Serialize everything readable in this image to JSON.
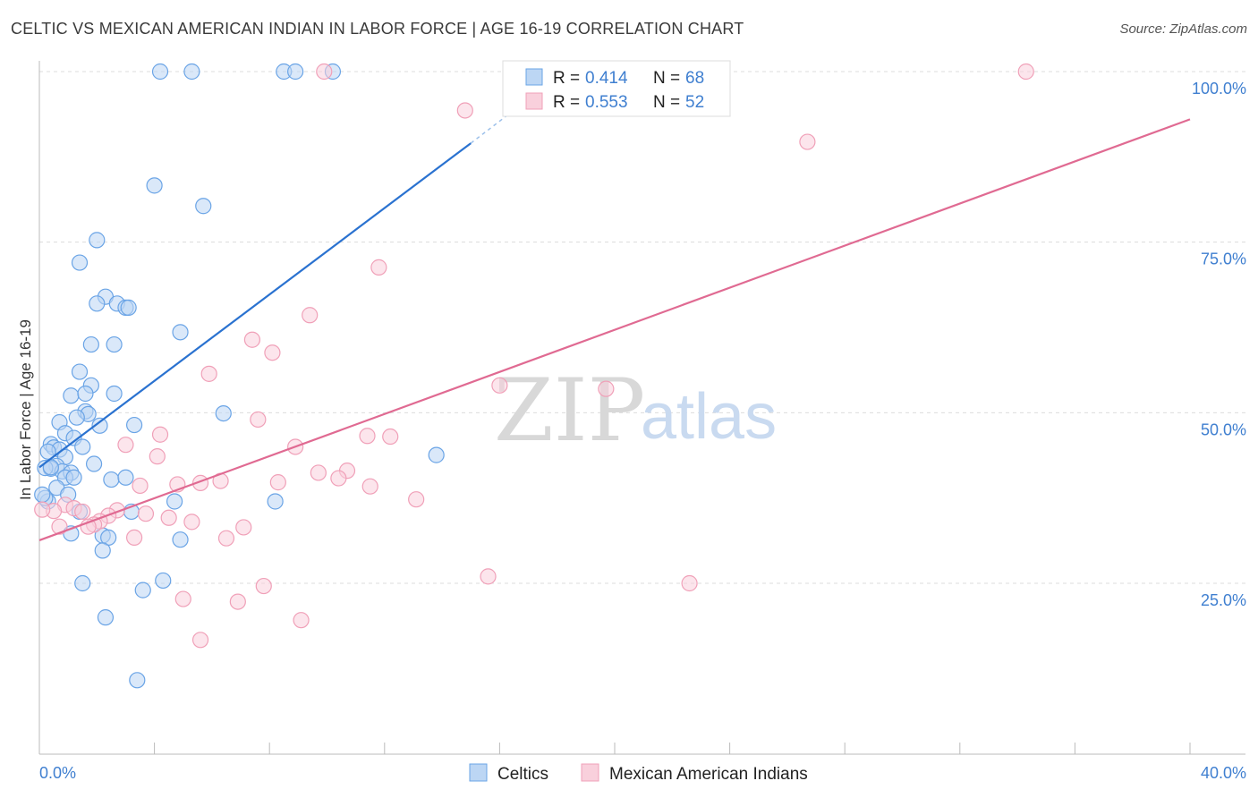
{
  "title": "CELTIC VS MEXICAN AMERICAN INDIAN IN LABOR FORCE | AGE 16-19 CORRELATION CHART",
  "source": "Source: ZipAtlas.com",
  "watermark": {
    "zip": "ZIP",
    "atlas": "atlas"
  },
  "legend": {
    "r_label": "R =",
    "n_label": "N =",
    "rows": [
      {
        "r": "0.414",
        "n": "68"
      },
      {
        "r": "0.553",
        "n": "52"
      }
    ]
  },
  "chart_data": {
    "type": "scatter",
    "title": "CELTIC VS MEXICAN AMERICAN INDIAN IN LABOR FORCE | AGE 16-19 CORRELATION CHART",
    "xlabel": "",
    "ylabel": "In Labor Force | Age 16-19",
    "xlim": [
      0,
      40
    ],
    "ylim": [
      2,
      102
    ],
    "x_tick_labels": [
      {
        "value": 0,
        "label": "0.0%"
      },
      {
        "value": 40,
        "label": "40.0%"
      }
    ],
    "y_tick_labels": [
      {
        "value": 25,
        "label": "25.0%"
      },
      {
        "value": 50,
        "label": "50.0%"
      },
      {
        "value": 75,
        "label": "75.0%"
      },
      {
        "value": 100,
        "label": "100.0%"
      }
    ],
    "grid": true,
    "legend_position": "top-center",
    "series": [
      {
        "name": "Celtics",
        "color": "#6aa4e6",
        "fill": "#bcd6f4",
        "line_color": "#2a72d0",
        "trend": {
          "x0": 0.0,
          "y0": 42.0,
          "x1": 15.0,
          "y1": 89.5,
          "dash_to_x": 16.7,
          "dash_to_y": 95.0
        },
        "points": [
          [
            4.2,
            100
          ],
          [
            5.3,
            100
          ],
          [
            8.5,
            100
          ],
          [
            8.9,
            100
          ],
          [
            10.2,
            100
          ],
          [
            4.0,
            83.3
          ],
          [
            5.7,
            80.3
          ],
          [
            2.0,
            75.3
          ],
          [
            1.4,
            72.0
          ],
          [
            2.3,
            67.0
          ],
          [
            2.0,
            66.0
          ],
          [
            2.7,
            66.0
          ],
          [
            3.0,
            65.4
          ],
          [
            3.1,
            65.4
          ],
          [
            1.8,
            60.0
          ],
          [
            2.6,
            60.0
          ],
          [
            4.9,
            61.8
          ],
          [
            1.4,
            56.0
          ],
          [
            1.8,
            54.0
          ],
          [
            1.1,
            52.5
          ],
          [
            1.6,
            52.8
          ],
          [
            2.6,
            52.8
          ],
          [
            1.6,
            50.2
          ],
          [
            1.7,
            49.8
          ],
          [
            1.3,
            49.3
          ],
          [
            6.4,
            49.9
          ],
          [
            2.1,
            48.1
          ],
          [
            0.7,
            48.6
          ],
          [
            3.3,
            48.2
          ],
          [
            0.9,
            47.0
          ],
          [
            1.2,
            46.3
          ],
          [
            0.4,
            45.4
          ],
          [
            0.5,
            44.9
          ],
          [
            0.7,
            44.6
          ],
          [
            0.3,
            44.3
          ],
          [
            1.5,
            45.0
          ],
          [
            0.9,
            43.5
          ],
          [
            0.6,
            42.2
          ],
          [
            0.4,
            41.8
          ],
          [
            0.2,
            41.9
          ],
          [
            0.8,
            41.4
          ],
          [
            1.1,
            41.2
          ],
          [
            1.9,
            42.5
          ],
          [
            0.9,
            40.5
          ],
          [
            1.2,
            40.5
          ],
          [
            2.5,
            40.2
          ],
          [
            3.0,
            40.5
          ],
          [
            0.6,
            39.0
          ],
          [
            1.0,
            38.0
          ],
          [
            0.3,
            37.0
          ],
          [
            0.2,
            37.5
          ],
          [
            1.4,
            35.5
          ],
          [
            3.2,
            35.5
          ],
          [
            4.7,
            37.0
          ],
          [
            8.2,
            37.0
          ],
          [
            1.1,
            32.3
          ],
          [
            2.2,
            32.0
          ],
          [
            2.4,
            31.7
          ],
          [
            4.9,
            31.4
          ],
          [
            2.2,
            29.8
          ],
          [
            1.5,
            25.0
          ],
          [
            3.6,
            24.0
          ],
          [
            4.3,
            25.4
          ],
          [
            2.3,
            20.0
          ],
          [
            3.4,
            10.8
          ],
          [
            13.8,
            43.8
          ],
          [
            0.1,
            38.0
          ],
          [
            0.4,
            42.0
          ]
        ]
      },
      {
        "name": "Mexican American Indians",
        "color": "#f0a0b8",
        "fill": "#f9d0dc",
        "line_color": "#e06a92",
        "trend": {
          "x0": 0.0,
          "y0": 31.3,
          "x1": 40.0,
          "y1": 93.0
        },
        "points": [
          [
            9.9,
            100
          ],
          [
            34.3,
            100
          ],
          [
            14.8,
            94.3
          ],
          [
            26.7,
            89.7
          ],
          [
            11.8,
            71.3
          ],
          [
            9.4,
            64.3
          ],
          [
            7.4,
            60.7
          ],
          [
            8.1,
            58.8
          ],
          [
            5.9,
            55.7
          ],
          [
            16.0,
            54.0
          ],
          [
            19.7,
            53.5
          ],
          [
            7.6,
            49.0
          ],
          [
            4.2,
            46.8
          ],
          [
            11.4,
            46.6
          ],
          [
            12.2,
            46.5
          ],
          [
            3.0,
            45.3
          ],
          [
            8.9,
            45.0
          ],
          [
            4.1,
            43.6
          ],
          [
            9.7,
            41.2
          ],
          [
            10.7,
            41.5
          ],
          [
            10.4,
            40.4
          ],
          [
            8.3,
            39.8
          ],
          [
            6.3,
            40.0
          ],
          [
            5.6,
            39.7
          ],
          [
            4.8,
            39.5
          ],
          [
            3.5,
            39.3
          ],
          [
            11.5,
            39.2
          ],
          [
            13.1,
            37.3
          ],
          [
            0.9,
            36.5
          ],
          [
            1.2,
            36.0
          ],
          [
            0.5,
            35.6
          ],
          [
            1.5,
            35.5
          ],
          [
            2.7,
            35.7
          ],
          [
            3.7,
            35.2
          ],
          [
            2.4,
            34.9
          ],
          [
            2.1,
            34.1
          ],
          [
            1.9,
            33.6
          ],
          [
            1.7,
            33.3
          ],
          [
            4.5,
            34.6
          ],
          [
            5.3,
            34.0
          ],
          [
            7.1,
            33.2
          ],
          [
            0.7,
            33.3
          ],
          [
            3.3,
            31.7
          ],
          [
            6.5,
            31.6
          ],
          [
            15.6,
            26.0
          ],
          [
            22.6,
            25.0
          ],
          [
            7.8,
            24.6
          ],
          [
            5.0,
            22.7
          ],
          [
            6.9,
            22.3
          ],
          [
            9.1,
            19.6
          ],
          [
            5.6,
            16.7
          ],
          [
            0.1,
            35.8
          ]
        ]
      }
    ]
  }
}
